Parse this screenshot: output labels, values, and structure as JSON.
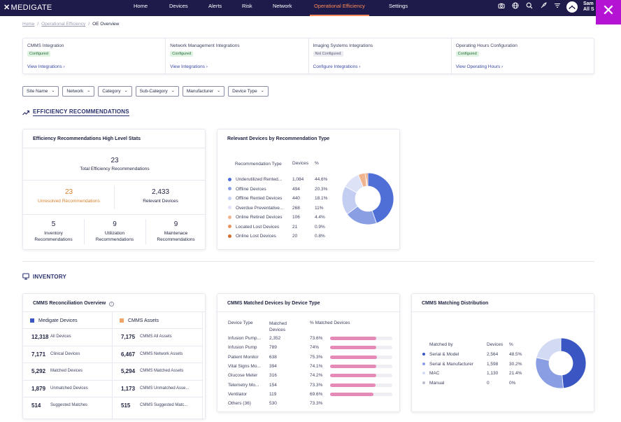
{
  "nav": {
    "brand": "MEDIGATE",
    "items": [
      "Home",
      "Devices",
      "Alerts",
      "Risk",
      "Network",
      "Operational Efficiency",
      "Settings"
    ],
    "user_name": "Sam",
    "user_org": "All S"
  },
  "breadcrumb": {
    "home": "Home",
    "parent": "Operational Efficiency",
    "current": "OE Overview"
  },
  "integrations": [
    {
      "title": "CMMS Integration",
      "status": "Configured",
      "link": "View Integrations ›"
    },
    {
      "title": "Network Management Integrations",
      "status": "Configured",
      "link": "View Integrations ›"
    },
    {
      "title": "Imaging Systems Integrations",
      "status": "Not Configured",
      "link": "Configure Integrations ›"
    },
    {
      "title": "Operating Hours Configuration",
      "status": "Configured",
      "link": "View Operating Hours ›"
    }
  ],
  "filters": [
    "Site Name",
    "Network",
    "Category",
    "Sub-Category",
    "Manufacturer",
    "Device Type"
  ],
  "efficiency": {
    "section_title": "EFFICIENCY RECOMMENDATIONS",
    "stats": {
      "title": "Efficiency Recommendations High Level Stats",
      "total_value": "23",
      "total_label": "Total Efficiency Recommendations",
      "unresolved_value": "23",
      "unresolved_label": "Unresolved Recommendations",
      "relevant_value": "2,433",
      "relevant_label": "Relevant Devices",
      "inventory_value": "5",
      "inventory_label": "Inventory Recommendations",
      "utilization_value": "9",
      "utilization_label": "Utilization Recommendations",
      "maintenance_value": "9",
      "maintenance_label": "Maintenace Recommendations"
    },
    "relevant": {
      "title": "Relevant Devices by Recommendation Type",
      "col_type": "Recommendation Type",
      "col_devices": "Devices",
      "col_pct": "%",
      "rows": [
        {
          "type": "Underutilized Rented...",
          "devices": "1,084",
          "pct": "44.6%",
          "color": "#4f6fd6"
        },
        {
          "type": "Offline Devices",
          "devices": "494",
          "pct": "20.3%",
          "color": "#8a9ee4"
        },
        {
          "type": "Offline Rented Devices",
          "devices": "440",
          "pct": "18.1%",
          "color": "#c4cdf2"
        },
        {
          "type": "Overdue Preventative...",
          "devices": "268",
          "pct": "11%",
          "color": "#dde2f6"
        },
        {
          "type": "Online Retired Devices",
          "devices": "106",
          "pct": "4.4%",
          "color": "#f0b48f"
        },
        {
          "type": "Located Lost Devices",
          "devices": "21",
          "pct": "0.9%",
          "color": "#e8925f"
        },
        {
          "type": "Online Lost Devices",
          "devices": "20",
          "pct": "0.8%",
          "color": "#d46c2f"
        }
      ]
    }
  },
  "inventory": {
    "section_title": "INVENTORY",
    "reconciliation": {
      "title": "CMMS Reconciliation Overview",
      "left_header": "Medigate Devices",
      "right_header": "CMMS Assets",
      "left_color": "#3a56c2",
      "right_color": "#f0a46a",
      "rows": [
        {
          "lv": "12,318",
          "ll": "All Devices",
          "rv": "7,175",
          "rl": "CMMS All Assets"
        },
        {
          "lv": "7,171",
          "ll": "Clinical Devices",
          "rv": "6,467",
          "rl": "CMMS Network Assets"
        },
        {
          "lv": "5,292",
          "ll": "Matched Devices",
          "rv": "5,294",
          "rl": "CMMS Matched Assets"
        },
        {
          "lv": "1,879",
          "ll": "Unmatched Devices",
          "rv": "1,173",
          "rl": "CMMS Unmatched Asse..."
        },
        {
          "lv": "514",
          "ll": "Suggested Matches",
          "rv": "515",
          "rl": "CMMS Suggested Matc..."
        }
      ]
    },
    "matched": {
      "title": "CMMS Matched Devices by Device Type",
      "col_type": "Device Type",
      "col_matched": "Matched Devices",
      "col_pct": "% Matched Devices",
      "rows": [
        {
          "type": "Infusion Pump...",
          "matched": "2,352",
          "pct": "73.6%",
          "value": 73.6
        },
        {
          "type": "Infusion Pump",
          "matched": "789",
          "pct": "74%",
          "value": 74
        },
        {
          "type": "Patient Monitor",
          "matched": "638",
          "pct": "75.3%",
          "value": 75.3
        },
        {
          "type": "Vital Signs Mo...",
          "matched": "394",
          "pct": "74.1%",
          "value": 74.1
        },
        {
          "type": "Glucose Meter",
          "matched": "316",
          "pct": "74.2%",
          "value": 74.2
        },
        {
          "type": "Telemetry Mo...",
          "matched": "154",
          "pct": "73.3%",
          "value": 73.3
        },
        {
          "type": "Ventilator",
          "matched": "119",
          "pct": "69.6%",
          "value": 69.6
        },
        {
          "type": "Others (36)",
          "matched": "530",
          "pct": "73.3%",
          "value": null
        }
      ]
    },
    "distribution": {
      "title": "CMMS Matching Distribution",
      "col_by": "Matched by",
      "col_devices": "Devices",
      "col_pct": "%",
      "rows": [
        {
          "by": "Serial & Model",
          "devices": "2,564",
          "pct": "48.5%",
          "color": "#3a56c2"
        },
        {
          "by": "Serial & Manufacturer",
          "devices": "1,598",
          "pct": "30.2%",
          "color": "#8a9ee4"
        },
        {
          "by": "MAC",
          "devices": "1,130",
          "pct": "21.4%",
          "color": "#d3daf4"
        },
        {
          "by": "Manual",
          "devices": "0",
          "pct": "0%",
          "color": "#b9bccb"
        }
      ]
    }
  },
  "chart_data": [
    {
      "type": "pie",
      "categories": [
        "Underutilized Rented...",
        "Offline Devices",
        "Offline Rented Devices",
        "Overdue Preventative...",
        "Online Retired Devices",
        "Located Lost Devices",
        "Online Lost Devices"
      ],
      "values": [
        1084,
        494,
        440,
        268,
        106,
        21,
        20
      ],
      "title": "Relevant Devices by Recommendation Type"
    },
    {
      "type": "bar",
      "categories": [
        "Infusion Pump...",
        "Infusion Pump",
        "Patient Monitor",
        "Vital Signs Mo...",
        "Glucose Meter",
        "Telemetry Mo...",
        "Ventilator"
      ],
      "values": [
        73.6,
        74,
        75.3,
        74.1,
        74.2,
        73.3,
        69.6
      ],
      "title": "CMMS Matched Devices by Device Type",
      "ylim": [
        0,
        100
      ]
    },
    {
      "type": "pie",
      "categories": [
        "Serial & Model",
        "Serial & Manufacturer",
        "MAC",
        "Manual"
      ],
      "values": [
        2564,
        1598,
        1130,
        0
      ],
      "title": "CMMS Matching Distribution"
    }
  ]
}
